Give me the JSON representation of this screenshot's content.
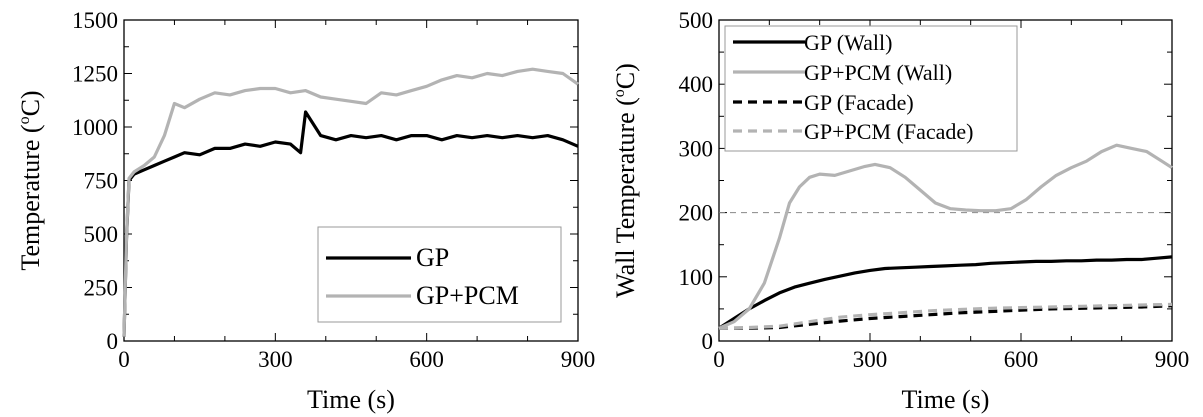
{
  "chart_data": [
    {
      "type": "line",
      "title": "",
      "xlabel": "Time (s)",
      "ylabel": "Temperature (°C)",
      "ylabel_parts": {
        "before": "Temperature (",
        "sup": "o",
        "after": "C)"
      },
      "xlim": [
        0,
        900
      ],
      "ylim": [
        0,
        1500
      ],
      "xticks": [
        0,
        300,
        600,
        900
      ],
      "yticks": [
        0,
        250,
        500,
        750,
        1000,
        1250,
        1500
      ],
      "legend_position": "bottom-right",
      "grid": false,
      "series": [
        {
          "name": "GP",
          "color": "#000000",
          "dash": "solid",
          "x": [
            0,
            5,
            10,
            20,
            40,
            60,
            80,
            100,
            120,
            150,
            180,
            210,
            240,
            270,
            300,
            330,
            350,
            360,
            390,
            420,
            450,
            480,
            510,
            540,
            570,
            600,
            630,
            660,
            690,
            720,
            750,
            780,
            810,
            840,
            870,
            900
          ],
          "y": [
            20,
            480,
            750,
            780,
            800,
            820,
            840,
            860,
            880,
            870,
            900,
            900,
            920,
            910,
            930,
            920,
            880,
            1070,
            960,
            940,
            960,
            950,
            960,
            940,
            960,
            960,
            940,
            960,
            950,
            960,
            950,
            960,
            950,
            960,
            940,
            910
          ]
        },
        {
          "name": "GP+PCM",
          "color": "#b3b3b3",
          "dash": "solid",
          "x": [
            0,
            5,
            10,
            20,
            40,
            60,
            80,
            100,
            120,
            150,
            180,
            210,
            240,
            270,
            300,
            330,
            360,
            390,
            420,
            450,
            480,
            510,
            540,
            570,
            600,
            630,
            660,
            690,
            720,
            750,
            780,
            810,
            840,
            870,
            900
          ],
          "y": [
            20,
            490,
            760,
            790,
            820,
            860,
            960,
            1110,
            1090,
            1130,
            1160,
            1150,
            1170,
            1180,
            1180,
            1160,
            1170,
            1140,
            1130,
            1120,
            1110,
            1160,
            1150,
            1170,
            1190,
            1220,
            1240,
            1230,
            1250,
            1240,
            1260,
            1270,
            1260,
            1250,
            1200
          ]
        }
      ]
    },
    {
      "type": "line",
      "title": "",
      "xlabel": "Time (s)",
      "ylabel": "Wall Temperature (°C)",
      "ylabel_parts": {
        "before": "Wall Temperature (",
        "sup": "o",
        "after": "C)"
      },
      "xlim": [
        0,
        900
      ],
      "ylim": [
        0,
        500
      ],
      "xticks": [
        0,
        300,
        600,
        900
      ],
      "yticks": [
        0,
        100,
        200,
        300,
        400,
        500
      ],
      "legend_position": "top-left",
      "grid": false,
      "reference_line": {
        "y": 200,
        "style": "dashed",
        "color": "#888888"
      },
      "series": [
        {
          "name": "GP (Wall)",
          "color": "#000000",
          "dash": "solid",
          "x": [
            0,
            30,
            60,
            90,
            120,
            150,
            180,
            210,
            240,
            270,
            300,
            330,
            360,
            390,
            420,
            450,
            480,
            510,
            540,
            570,
            600,
            630,
            660,
            690,
            720,
            750,
            780,
            810,
            840,
            870,
            900
          ],
          "y": [
            20,
            35,
            50,
            63,
            75,
            84,
            90,
            96,
            101,
            106,
            110,
            113,
            114,
            115,
            116,
            117,
            118,
            119,
            121,
            122,
            123,
            124,
            124,
            125,
            125,
            126,
            126,
            127,
            127,
            129,
            131
          ]
        },
        {
          "name": "GP+PCM (Wall)",
          "color": "#b3b3b3",
          "dash": "solid",
          "x": [
            0,
            30,
            60,
            90,
            120,
            140,
            160,
            180,
            200,
            230,
            260,
            290,
            310,
            340,
            370,
            400,
            430,
            460,
            490,
            520,
            550,
            580,
            610,
            640,
            670,
            700,
            730,
            760,
            790,
            820,
            850,
            880,
            900
          ],
          "y": [
            20,
            30,
            50,
            90,
            160,
            215,
            240,
            255,
            260,
            258,
            265,
            272,
            275,
            270,
            255,
            235,
            215,
            206,
            204,
            203,
            203,
            206,
            220,
            240,
            258,
            270,
            280,
            295,
            305,
            300,
            295,
            280,
            270
          ]
        },
        {
          "name": "GP (Facade)",
          "color": "#000000",
          "dash": "dashed",
          "x": [
            0,
            60,
            120,
            180,
            240,
            300,
            360,
            420,
            480,
            540,
            600,
            660,
            720,
            780,
            840,
            900
          ],
          "y": [
            20,
            20,
            21,
            26,
            31,
            35,
            38,
            41,
            44,
            46,
            48,
            50,
            51,
            52,
            53,
            55
          ]
        },
        {
          "name": "GP+PCM (Facade)",
          "color": "#b3b3b3",
          "dash": "dashed",
          "x": [
            0,
            60,
            120,
            180,
            240,
            300,
            360,
            420,
            480,
            540,
            600,
            660,
            720,
            780,
            840,
            900
          ],
          "y": [
            20,
            21,
            23,
            30,
            37,
            41,
            44,
            47,
            49,
            51,
            52,
            53,
            54,
            55,
            56,
            57
          ]
        }
      ]
    }
  ]
}
